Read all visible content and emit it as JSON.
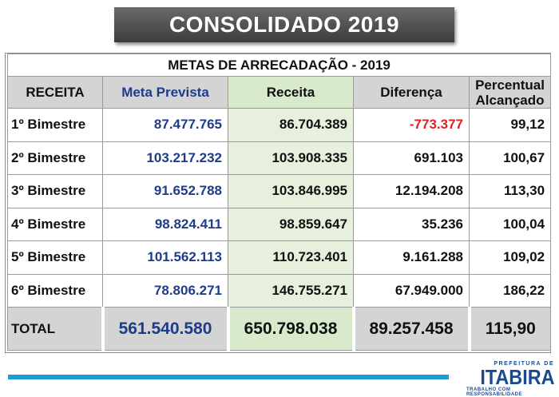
{
  "header": {
    "title": "CONSOLIDADO  2019"
  },
  "table": {
    "caption": "METAS DE ARRECADAÇÃO - 2019",
    "columns": {
      "receita": "RECEITA",
      "meta": "Meta Prevista",
      "rec": "Receita",
      "dif": "Diferença",
      "pct_line1": "Percentual",
      "pct_line2": "Alcançado"
    },
    "rows": [
      {
        "label": "1º Bimestre",
        "meta": "87.477.765",
        "rec": "86.704.389",
        "dif": "-773.377",
        "pct": "99,12"
      },
      {
        "label": "2º Bimestre",
        "meta": "103.217.232",
        "rec": "103.908.335",
        "dif": "691.103",
        "pct": "100,67"
      },
      {
        "label": "3º Bimestre",
        "meta": "91.652.788",
        "rec": "103.846.995",
        "dif": "12.194.208",
        "pct": "113,30"
      },
      {
        "label": "4º Bimestre",
        "meta": "98.824.411",
        "rec": "98.859.647",
        "dif": "35.236",
        "pct": "100,04"
      },
      {
        "label": "5º Bimestre",
        "meta": "101.562.113",
        "rec": "110.723.401",
        "dif": "9.161.288",
        "pct": "109,02"
      },
      {
        "label": "6º Bimestre",
        "meta": "78.806.271",
        "rec": "146.755.271",
        "dif": "67.949.000",
        "pct": "186,22"
      }
    ],
    "total": {
      "label": "TOTAL",
      "meta": "561.540.580",
      "rec": "650.798.038",
      "dif": "89.257.458",
      "pct": "115,90"
    }
  },
  "footer": {
    "logo_small": "PREFEITURA DE",
    "logo_big": "ITABIRA",
    "logo_tag": "TRABALHO COM RESPONSABILIDADE"
  },
  "colors": {
    "title_bg": "#4a4a4a",
    "header_gray": "#d4d4d4",
    "receita_green": "#e6f0dc",
    "meta_blue": "#1f3c88",
    "negative_red": "#e02020",
    "footer_bar": "#1e9ad6"
  }
}
